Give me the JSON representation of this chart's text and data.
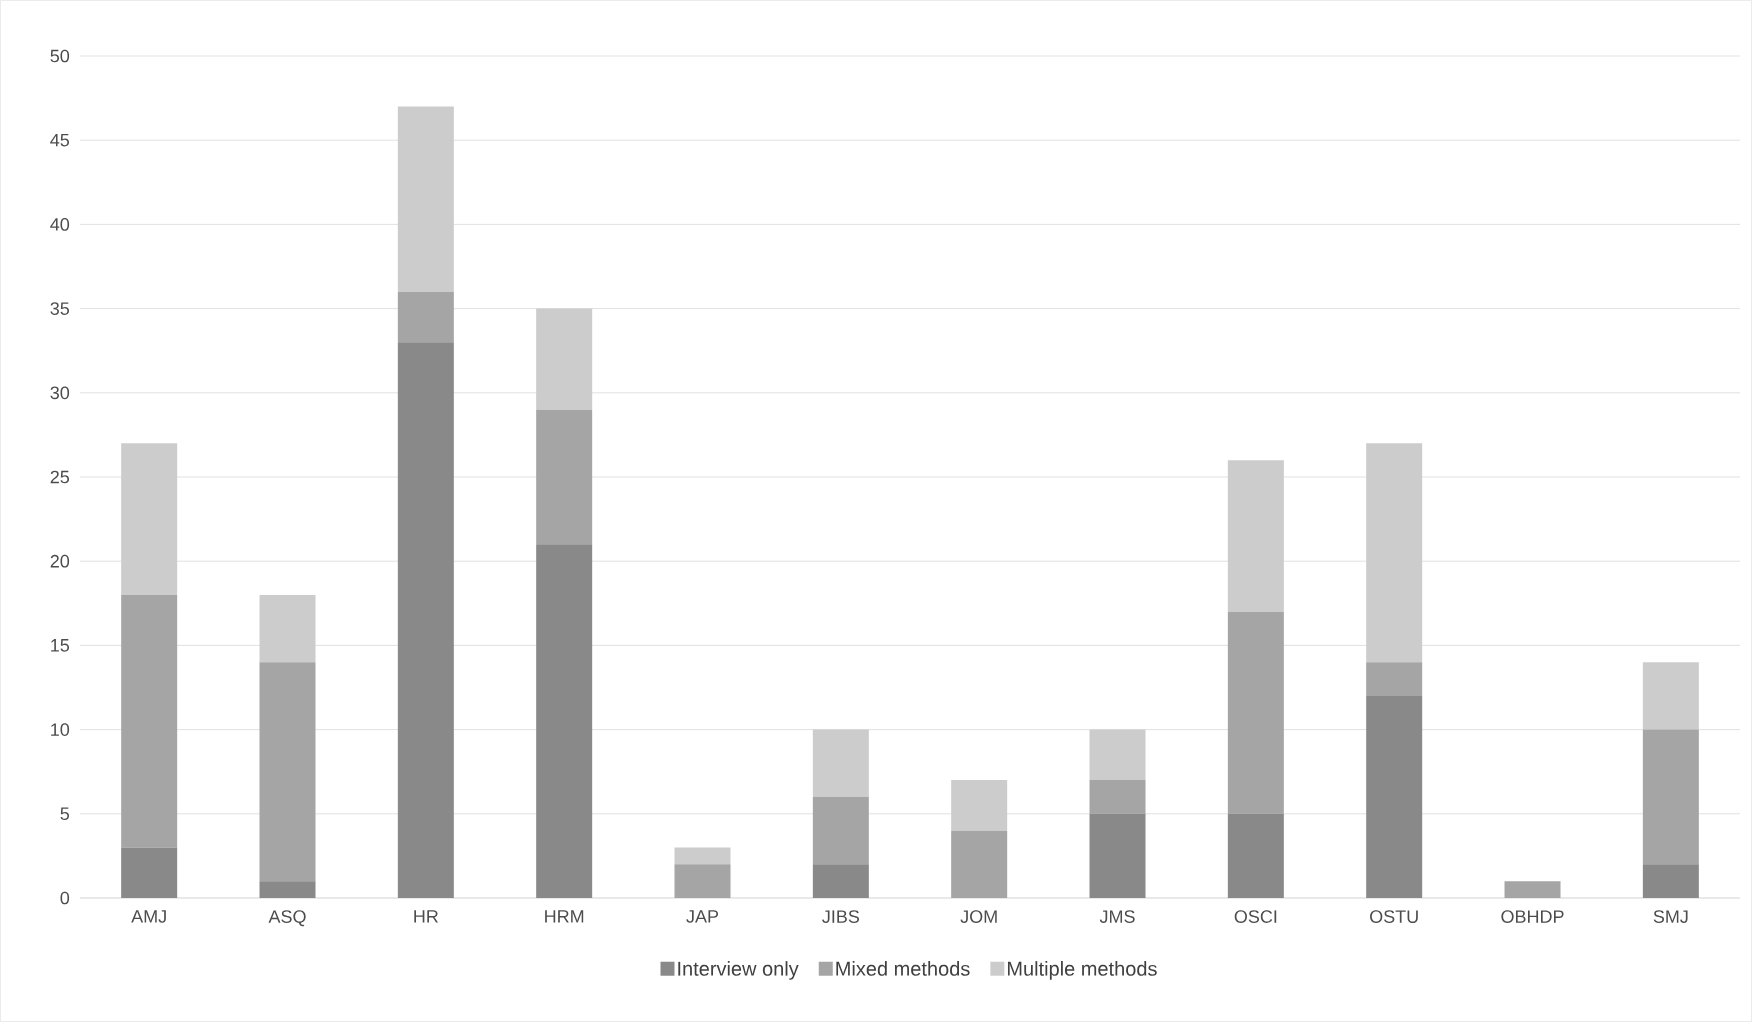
{
  "chart_data": {
    "type": "bar",
    "stacked": true,
    "categories": [
      "AMJ",
      "ASQ",
      "HR",
      "HRM",
      "JAP",
      "JIBS",
      "JOM",
      "JMS",
      "OSCI",
      "OSTU",
      "OBHDP",
      "SMJ"
    ],
    "series": [
      {
        "name": "Interview only",
        "color": "#898989",
        "values": [
          3,
          1,
          33,
          21,
          0,
          2,
          0,
          5,
          5,
          12,
          0,
          2
        ]
      },
      {
        "name": "Mixed methods",
        "color": "#a5a5a5",
        "values": [
          15,
          13,
          3,
          8,
          2,
          4,
          4,
          2,
          12,
          2,
          1,
          8
        ]
      },
      {
        "name": "Multiple methods",
        "color": "#cccccc",
        "values": [
          9,
          4,
          11,
          6,
          1,
          4,
          3,
          3,
          9,
          13,
          0,
          4
        ]
      }
    ],
    "ylim": [
      0,
      50
    ],
    "yticks": [
      0,
      5,
      10,
      15,
      20,
      25,
      30,
      35,
      40,
      45,
      50
    ],
    "grid": "y",
    "legend": "bottom"
  }
}
